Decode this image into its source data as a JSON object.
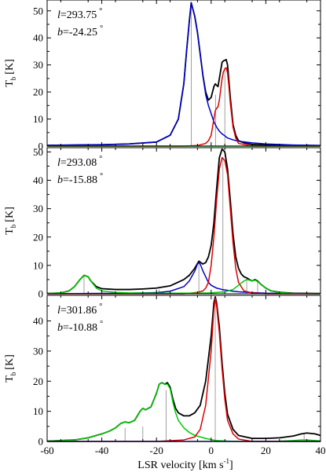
{
  "figure": {
    "xlabel": "LSR velocity [km s",
    "xlabel_sup": "-1",
    "xlabel_end": "]",
    "x_ticks": [
      -60,
      -40,
      -20,
      0,
      20,
      40
    ]
  },
  "chart_data": [
    {
      "type": "line",
      "l_label": "=293.75",
      "b_label": "=-24.25",
      "l_letter": "l",
      "b_letter": "b",
      "degree": "°",
      "ylabel": "T",
      "ylabel_sub": "b",
      "ylabel_unit": "[K]",
      "xlim": [
        -60,
        40
      ],
      "ylim": [
        0,
        54
      ],
      "y_ticks": [
        0,
        10,
        20,
        30,
        40,
        50
      ],
      "series": [
        {
          "color": "#000000",
          "x": [
            -60,
            -40,
            -30,
            -20,
            -15,
            -12,
            -10,
            -9,
            -8,
            -7.3,
            -6,
            -5,
            -4,
            -3,
            -2,
            -1,
            0,
            0.5,
            1,
            1.5,
            2,
            2.5,
            3,
            3.5,
            4,
            4.5,
            5,
            5.5,
            6,
            7,
            8,
            9,
            10,
            12,
            15,
            20,
            30,
            40
          ],
          "y": [
            0.3,
            0.5,
            0.8,
            1.5,
            4,
            10,
            23,
            35,
            46,
            53,
            48,
            42,
            34,
            26,
            20,
            17,
            18,
            20,
            22,
            23,
            22.5,
            22,
            25,
            28,
            31,
            31.5,
            31.7,
            32,
            30,
            18,
            8,
            4,
            2,
            1.2,
            0.6,
            0.4,
            0.3,
            0.2
          ]
        },
        {
          "color": "#0000cc",
          "x": [
            -60,
            -40,
            -30,
            -20,
            -15,
            -12,
            -10,
            -9,
            -8,
            -7.3,
            -6,
            -5,
            -4,
            -3,
            -2,
            -1,
            0,
            1,
            2,
            3,
            4,
            5,
            6,
            8,
            10,
            15,
            20,
            30,
            40
          ],
          "y": [
            0.3,
            0.5,
            0.8,
            1.5,
            4,
            10,
            23,
            35,
            46,
            53,
            48,
            42,
            34,
            26,
            19,
            15,
            12,
            9,
            7,
            5.5,
            4.5,
            3.8,
            3,
            2.3,
            1.8,
            1.2,
            0.8,
            0.4,
            0.2
          ]
        },
        {
          "color": "#dd0000",
          "x": [
            -60,
            -10,
            -5,
            -2,
            -1,
            0,
            0.5,
            1,
            1.5,
            2,
            2.5,
            3,
            3.5,
            4,
            4.5,
            5,
            5.5,
            6,
            6.5,
            7,
            8,
            9,
            10,
            15,
            40
          ],
          "y": [
            0,
            0,
            0.2,
            1,
            2,
            4,
            7,
            10,
            13,
            14,
            14.5,
            17,
            21,
            25,
            27.5,
            28.5,
            29,
            27,
            22,
            16,
            7,
            3,
            1,
            0,
            0
          ]
        },
        {
          "color": "#00cc00",
          "x": [
            -60,
            40
          ],
          "y": [
            0,
            0
          ]
        }
      ],
      "components": [
        {
          "x": -7.3,
          "height": 53
        },
        {
          "x": 1.6,
          "height": 19
        },
        {
          "x": 5.0,
          "height": 29
        }
      ]
    },
    {
      "type": "line",
      "l_label": "=293.08",
      "b_label": "=-15.88",
      "l_letter": "l",
      "b_letter": "b",
      "degree": "°",
      "ylabel": "T",
      "ylabel_sub": "b",
      "ylabel_unit": "[K]",
      "xlim": [
        -60,
        40
      ],
      "ylim": [
        0,
        51.5
      ],
      "y_ticks": [
        0,
        10,
        20,
        30,
        40,
        50
      ],
      "series": [
        {
          "color": "#000000",
          "x": [
            -60,
            -55,
            -52,
            -50,
            -48,
            -46.5,
            -45,
            -44,
            -42,
            -40,
            -35,
            -30,
            -25,
            -20,
            -15,
            -10,
            -8,
            -6,
            -4.5,
            -3,
            -2,
            -1,
            0,
            1,
            2,
            3,
            4,
            5,
            6,
            7,
            8,
            9,
            10,
            11,
            12,
            13,
            14,
            15,
            16,
            17,
            18,
            20,
            22,
            25,
            30,
            40
          ],
          "y": [
            0.1,
            0.3,
            1,
            2.5,
            5,
            6.5,
            6,
            4.5,
            2.5,
            1.8,
            1.5,
            1.5,
            1.7,
            2,
            2.8,
            5,
            6.5,
            9,
            11.5,
            10.5,
            11,
            13,
            17,
            25,
            37,
            48,
            51,
            50,
            44,
            33,
            21,
            13,
            9,
            7,
            6,
            5.6,
            5,
            4.5,
            5,
            4.5,
            3.5,
            2,
            1,
            0.5,
            0.2,
            0.1
          ]
        },
        {
          "color": "#0000cc",
          "x": [
            -60,
            -30,
            -20,
            -15,
            -10,
            -8,
            -6,
            -5,
            -4.5,
            -4,
            -3,
            -2,
            -1,
            0,
            2,
            4,
            6,
            8,
            10,
            15,
            20,
            30,
            40
          ],
          "y": [
            0,
            0.2,
            0.4,
            0.9,
            2.5,
            4.5,
            8,
            10.5,
            11,
            10.5,
            8,
            6,
            4,
            3,
            2,
            1.5,
            1.2,
            0.9,
            0.7,
            0.4,
            0.2,
            0.1,
            0
          ]
        },
        {
          "color": "#dd0000",
          "x": [
            -60,
            -10,
            -5,
            -3,
            -2,
            -1,
            0,
            1,
            2,
            3,
            4,
            5,
            6,
            7,
            8,
            9,
            10,
            12,
            15,
            20,
            40
          ],
          "y": [
            0,
            0,
            0.5,
            1,
            2,
            4,
            10,
            20,
            33,
            44,
            48,
            47,
            42,
            30,
            18,
            9,
            4,
            1,
            0.3,
            0,
            0
          ]
        },
        {
          "color": "#00cc00",
          "x": [
            -60,
            -55,
            -52,
            -50,
            -48,
            -46.5,
            -45,
            -44,
            -42,
            -40,
            -35,
            -30,
            -20,
            -10,
            0,
            5,
            8,
            10,
            12,
            13,
            14,
            15,
            16,
            17,
            18,
            20,
            22,
            25,
            30,
            40
          ],
          "y": [
            0.1,
            0.3,
            1,
            2.5,
            5,
            6.5,
            6,
            4.5,
            2,
            1,
            0.5,
            0.3,
            0.2,
            0.2,
            0.3,
            0.7,
            1.5,
            3,
            4.5,
            5,
            4.8,
            4.5,
            4.8,
            4.3,
            3.5,
            2,
            1,
            0.4,
            0.1,
            0
          ]
        }
      ],
      "components": [
        {
          "x": -46.5,
          "height": 6.5
        },
        {
          "x": -19,
          "height": 1.5
        },
        {
          "x": -4.5,
          "height": 11
        },
        {
          "x": 4.3,
          "height": 48
        },
        {
          "x": 13,
          "height": 5
        },
        {
          "x": 17,
          "height": 4.5
        }
      ]
    },
    {
      "type": "line",
      "l_label": "=301.86",
      "b_label": "=-10.88",
      "l_letter": "l",
      "b_letter": "b",
      "degree": "°",
      "ylabel": "T",
      "ylabel_sub": "b",
      "ylabel_unit": "[K]",
      "xlim": [
        -60,
        40
      ],
      "ylim": [
        0,
        48.5
      ],
      "y_ticks": [
        0,
        10,
        20,
        30,
        40
      ],
      "series": [
        {
          "color": "#000000",
          "x": [
            -60,
            -50,
            -45,
            -40,
            -37,
            -35,
            -33,
            -31.5,
            -30,
            -28,
            -26,
            -25,
            -24,
            -22,
            -20,
            -19,
            -18,
            -17,
            -16,
            -15,
            -14,
            -13,
            -12,
            -10,
            -8,
            -6,
            -4,
            -2,
            0,
            1,
            1.5,
            2,
            3,
            4,
            5,
            6,
            8,
            10,
            15,
            20,
            25,
            30,
            33,
            35,
            38,
            40
          ],
          "y": [
            0.1,
            0.5,
            1.2,
            2.5,
            3.5,
            4.5,
            6,
            6.5,
            6.2,
            7,
            10,
            11,
            10.5,
            11.5,
            16,
            19,
            19.5,
            19,
            19.5,
            18,
            14,
            11,
            9.5,
            8.5,
            8.5,
            9.5,
            12,
            20,
            35,
            46,
            48,
            46,
            38,
            26,
            16,
            9,
            4,
            2,
            1,
            1,
            1.2,
            1.8,
            2.5,
            2.8,
            2.5,
            2
          ]
        },
        {
          "color": "#00cc00",
          "x": [
            -60,
            -50,
            -45,
            -40,
            -37,
            -35,
            -33,
            -31.5,
            -30,
            -28,
            -26,
            -25,
            -24,
            -22,
            -20,
            -19,
            -18,
            -17,
            -16,
            -15,
            -14,
            -13,
            -12,
            -10,
            -8,
            -6,
            -4,
            -2,
            0,
            2,
            4,
            6,
            8,
            10,
            15,
            20,
            25,
            30,
            33,
            35,
            38,
            40
          ],
          "y": [
            0.1,
            0.5,
            1.2,
            2.5,
            3.5,
            4.5,
            6,
            6.5,
            6.2,
            7,
            10,
            11,
            10.5,
            11.5,
            16,
            19,
            19.5,
            19,
            19,
            17.5,
            13,
            9.5,
            7,
            4.5,
            3,
            2,
            1.5,
            1,
            0.6,
            0.3,
            0.2,
            0.1,
            0,
            0,
            0,
            0,
            0.1,
            0.3,
            0.5,
            0.5,
            0.3,
            0.2
          ]
        },
        {
          "color": "#dd0000",
          "x": [
            -60,
            -20,
            -10,
            -6,
            -4,
            -2,
            0,
            1,
            1.5,
            2,
            3,
            4,
            5,
            6,
            8,
            10,
            15,
            40
          ],
          "y": [
            0,
            0,
            0.5,
            1.5,
            4,
            12,
            30,
            44,
            47.5,
            45,
            36,
            24,
            14,
            7,
            2.5,
            0.8,
            0,
            0
          ]
        },
        {
          "color": "#0000cc",
          "x": [
            -60,
            40
          ],
          "y": [
            0,
            0
          ]
        }
      ],
      "components": [
        {
          "x": -31.5,
          "height": 4.5
        },
        {
          "x": -25,
          "height": 5
        },
        {
          "x": -16.5,
          "height": 17
        },
        {
          "x": 1.5,
          "height": 47
        },
        {
          "x": 34,
          "height": 2.5
        }
      ]
    }
  ]
}
